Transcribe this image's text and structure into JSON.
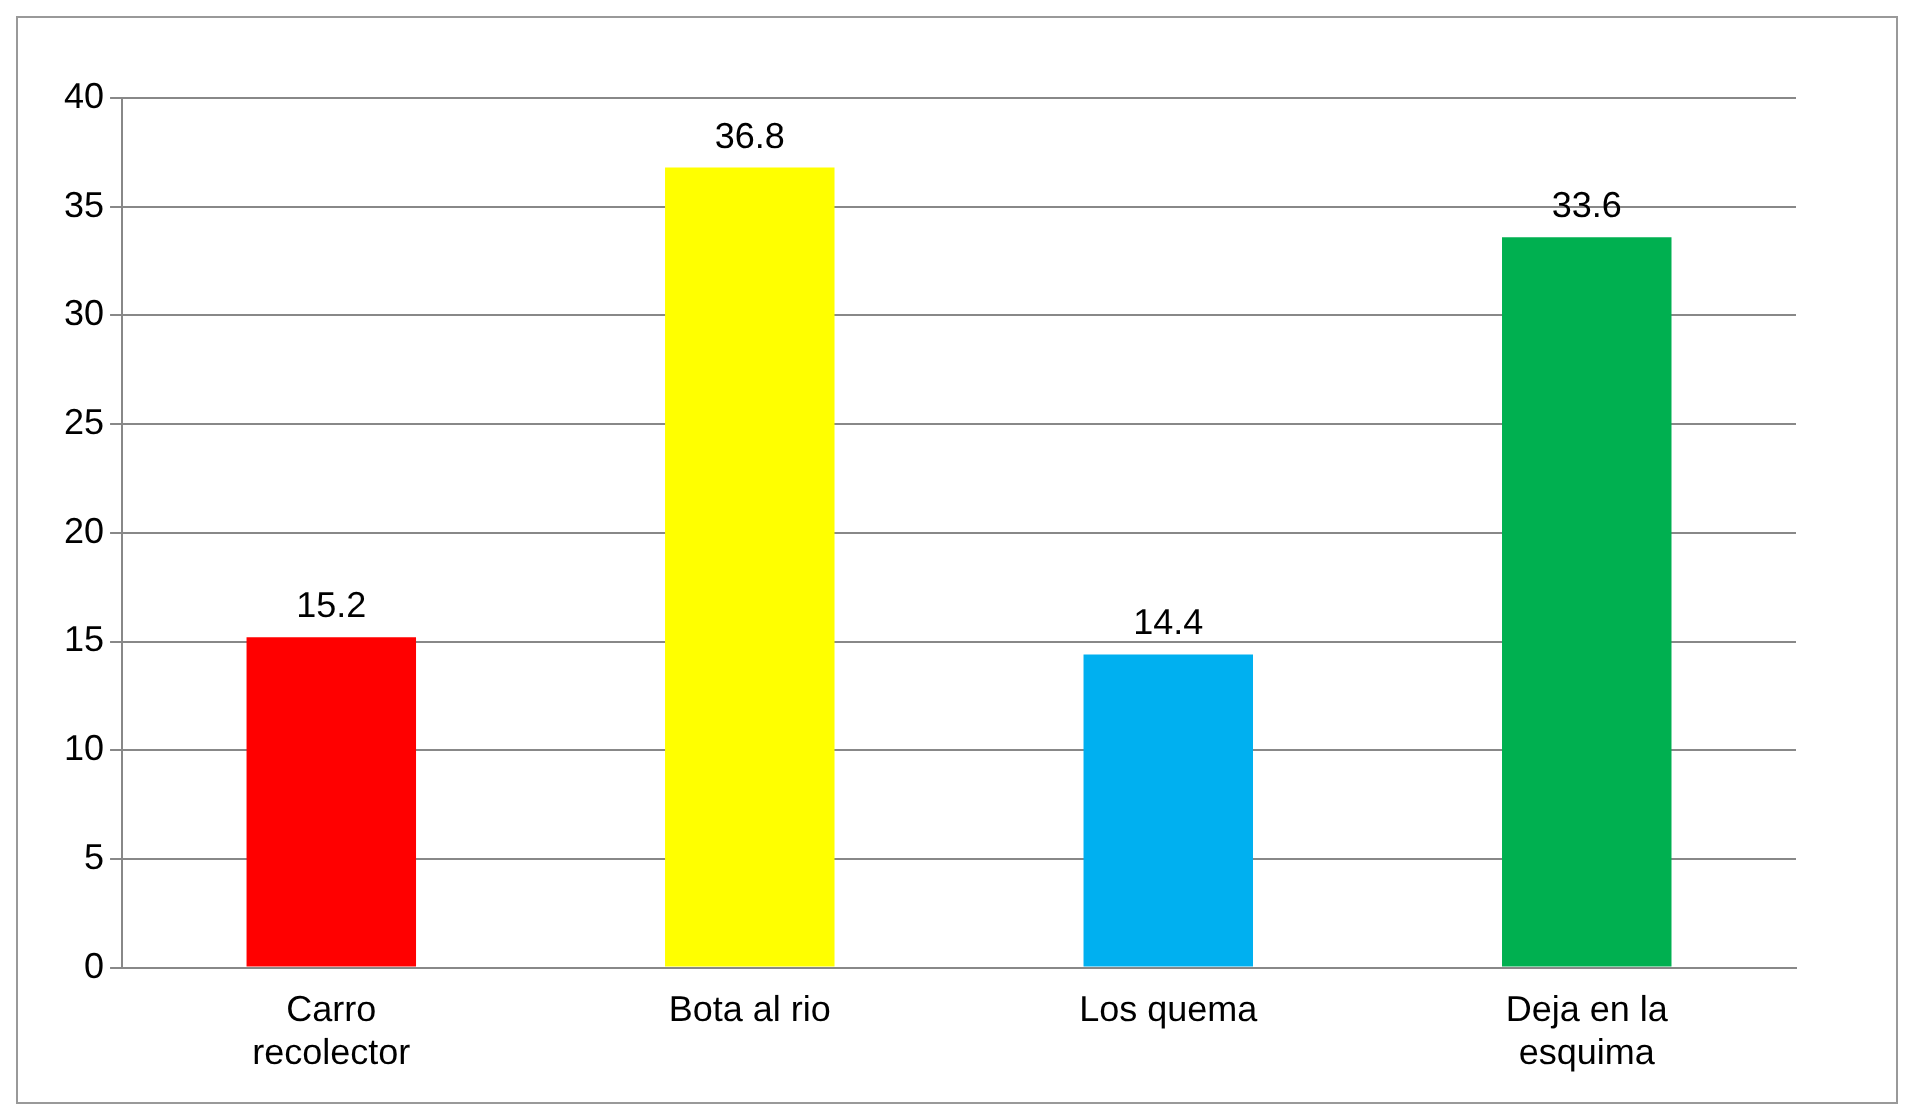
{
  "chart_data": {
    "type": "bar",
    "categories": [
      "Carro recolector",
      "Bota al rio",
      "Los quema",
      "Deja en la esquima"
    ],
    "values": [
      15.2,
      36.8,
      14.4,
      33.6
    ],
    "colors": [
      "#ff0000",
      "#ffff00",
      "#00b0f0",
      "#00b050"
    ],
    "ylim": [
      0,
      40
    ],
    "yticks": [
      0,
      5,
      10,
      15,
      20,
      25,
      30,
      35,
      40
    ],
    "grid": "y",
    "data_labels": true,
    "legend": false
  }
}
